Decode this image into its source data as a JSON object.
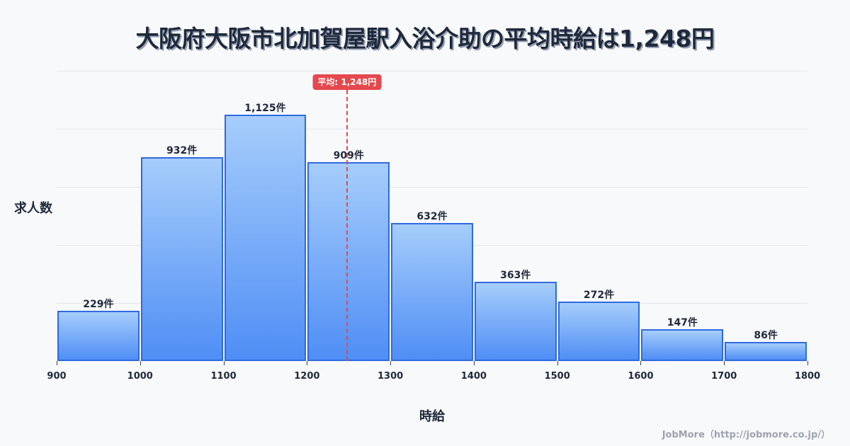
{
  "title": "大阪府大阪市北加賀屋駅入浴介助の平均時給は1,248円",
  "ylabel": "求人数",
  "xlabel": "時給",
  "credit": "JobMore（http://jobmore.co.jp/）",
  "mean_badge": "平均: 1,248円",
  "colors": {
    "bar_top": "#a6cdfb",
    "bar_bottom": "#4f8ef5",
    "bar_border": "#2f6ae0",
    "mean_line": "#e5484d",
    "background": "#f8f9fb",
    "text": "#1e293b"
  },
  "chart_data": {
    "type": "bar",
    "title": "大阪府大阪市北加賀屋駅入浴介助の平均時給は1,248円",
    "xlabel": "時給",
    "ylabel": "求人数",
    "bins": [
      [
        900,
        1000
      ],
      [
        1000,
        1100
      ],
      [
        1100,
        1200
      ],
      [
        1200,
        1300
      ],
      [
        1300,
        1400
      ],
      [
        1400,
        1500
      ],
      [
        1500,
        1600
      ],
      [
        1600,
        1700
      ],
      [
        1700,
        1800
      ]
    ],
    "categories": [
      "900-1000",
      "1000-1100",
      "1100-1200",
      "1200-1300",
      "1300-1400",
      "1400-1500",
      "1500-1600",
      "1600-1700",
      "1700-1800"
    ],
    "values": [
      229,
      932,
      1125,
      909,
      632,
      363,
      272,
      147,
      86
    ],
    "value_labels": [
      "229件",
      "932件",
      "1,125件",
      "909件",
      "632件",
      "363件",
      "272件",
      "147件",
      "86件"
    ],
    "x_ticks": [
      "900",
      "1000",
      "1100",
      "1200",
      "1300",
      "1400",
      "1500",
      "1600",
      "1700",
      "1800"
    ],
    "xlim": [
      900,
      1800
    ],
    "ylim": [
      0,
      1327
    ],
    "grid": true,
    "y_tick_labels_shown": false,
    "mean": 1248,
    "mean_label": "平均: 1,248円"
  }
}
